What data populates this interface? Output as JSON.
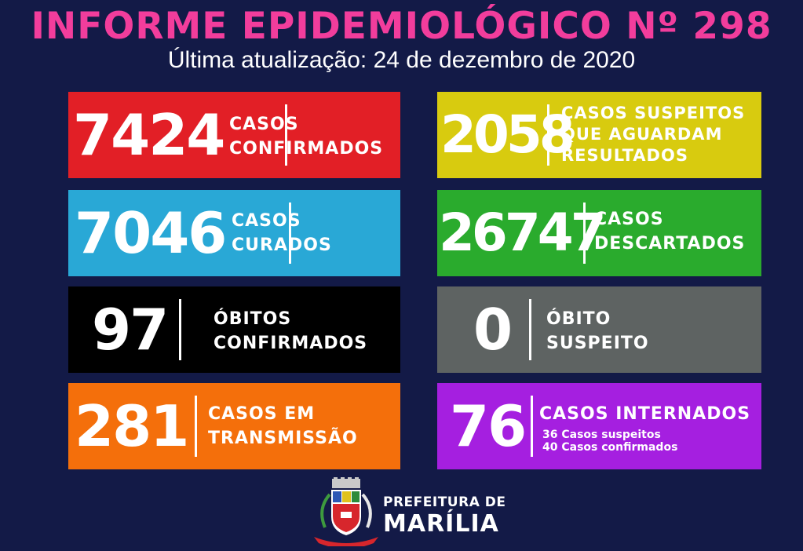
{
  "header": {
    "title": "INFORME EPIDEMIOLÓGICO Nº 298",
    "subtitle": "Última atualização: 24 de dezembro de 2020"
  },
  "cards": [
    {
      "value": "7424",
      "label_lines": [
        "CASOS",
        "CONFIRMADOS"
      ],
      "color": "#e21f26"
    },
    {
      "value": "2058",
      "label_lines": [
        "CASOS SUSPEITOS",
        "QUE AGUARDAM",
        "RESULTADOS"
      ],
      "color": "#d8cb0f"
    },
    {
      "value": "7046",
      "label_lines": [
        "CASOS",
        "CURADOS"
      ],
      "color": "#29a8d6"
    },
    {
      "value": "26747",
      "label_lines": [
        "CASOS",
        "DESCARTADOS"
      ],
      "color": "#2aab2d"
    },
    {
      "value": "97",
      "label_lines": [
        "ÓBITOS",
        "CONFIRMADOS"
      ],
      "color": "#000000"
    },
    {
      "value": "0",
      "label_lines": [
        "ÓBITO",
        "SUSPEITO"
      ],
      "color": "#5e6362"
    },
    {
      "value": "281",
      "label_lines": [
        "CASOS EM",
        "TRANSMISSÃO"
      ],
      "color": "#f46f0b"
    },
    {
      "value": "76",
      "label_lines": [
        "CASOS INTERNADOS"
      ],
      "sub_lines": [
        "36 Casos suspeitos",
        "40 Casos confirmados"
      ],
      "color": "#a51fe0"
    }
  ],
  "footer": {
    "logo_icon": "coat-of-arms-icon",
    "org_line1": "PREFEITURA DE",
    "org_line2": "MARÍLIA"
  }
}
